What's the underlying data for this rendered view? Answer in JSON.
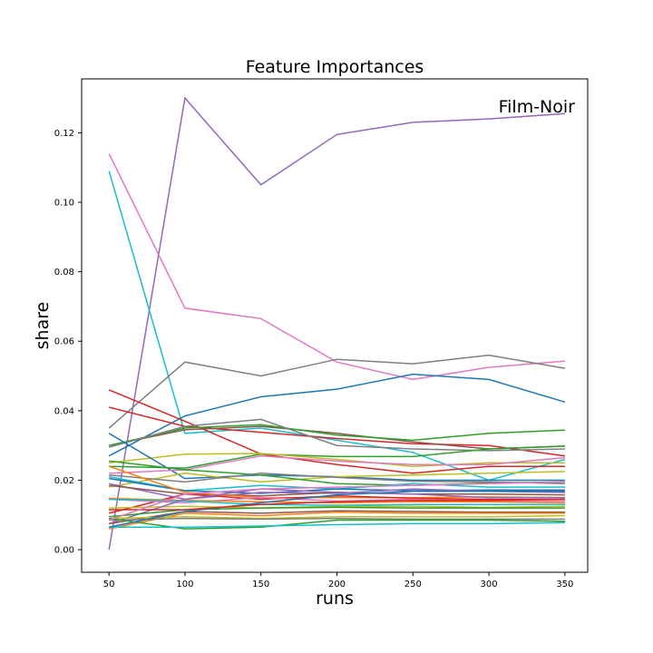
{
  "chart_data": {
    "type": "line",
    "title": "Feature Importances",
    "xlabel": "runs",
    "ylabel": "share",
    "x": [
      50,
      100,
      150,
      200,
      250,
      300,
      350
    ],
    "xticks": [
      50,
      100,
      150,
      200,
      250,
      300,
      350
    ],
    "yticks": [
      0.0,
      0.02,
      0.04,
      0.06,
      0.08,
      0.1,
      0.12
    ],
    "ytick_labels": [
      "0.00",
      "0.02",
      "0.04",
      "0.06",
      "0.08",
      "0.10",
      "0.12"
    ],
    "xlim": [
      32,
      365
    ],
    "ylim": [
      -0.0065,
      0.1355
    ],
    "grid": false,
    "annotation": "Film-Noir",
    "series": [
      {
        "color": "#9467bd",
        "values": [
          0.0,
          0.13,
          0.105,
          0.1195,
          0.123,
          0.124,
          0.1255
        ]
      },
      {
        "color": "#e377c2",
        "values": [
          0.114,
          0.0695,
          0.0665,
          0.054,
          0.049,
          0.0525,
          0.0543
        ]
      },
      {
        "color": "#17becf",
        "values": [
          0.109,
          0.0335,
          0.035,
          0.0315,
          0.028,
          0.02,
          0.026
        ]
      },
      {
        "color": "#7f7f7f",
        "values": [
          0.035,
          0.054,
          0.05,
          0.0548,
          0.0535,
          0.056,
          0.0522
        ]
      },
      {
        "color": "#1f77b4",
        "values": [
          0.027,
          0.0385,
          0.044,
          0.0462,
          0.0505,
          0.049,
          0.0425
        ]
      },
      {
        "color": "#d62728",
        "values": [
          0.046,
          0.037,
          0.0275,
          0.0245,
          0.022,
          0.024,
          0.024
        ]
      },
      {
        "color": "#d62728",
        "values": [
          0.041,
          0.0355,
          0.0338,
          0.032,
          0.0305,
          0.03,
          0.027
        ]
      },
      {
        "color": "#8c564b",
        "values": [
          0.03,
          0.0345,
          0.0355,
          0.0335,
          0.031,
          0.029,
          0.0298
        ]
      },
      {
        "color": "#2ca02c",
        "values": [
          0.03,
          0.035,
          0.036,
          0.033,
          0.0315,
          0.0335,
          0.0344
        ]
      },
      {
        "color": "#7f7f7f",
        "values": [
          0.0295,
          0.0355,
          0.0375,
          0.03,
          0.029,
          0.0285,
          0.029
        ]
      },
      {
        "color": "#2ca02c",
        "values": [
          0.024,
          0.0235,
          0.0275,
          0.0268,
          0.0268,
          0.029,
          0.0298
        ]
      },
      {
        "color": "#bcbd22",
        "values": [
          0.025,
          0.0275,
          0.0277,
          0.026,
          0.024,
          0.025,
          0.025
        ]
      },
      {
        "color": "#1f77b4",
        "values": [
          0.0335,
          0.0205,
          0.0215,
          0.021,
          0.02,
          0.02,
          0.02
        ]
      },
      {
        "color": "#e377c2",
        "values": [
          0.022,
          0.023,
          0.027,
          0.0255,
          0.0245,
          0.0245,
          0.0265
        ]
      },
      {
        "color": "#bcbd22",
        "values": [
          0.018,
          0.022,
          0.0195,
          0.021,
          0.0215,
          0.022,
          0.0225
        ]
      },
      {
        "color": "#2ca02c",
        "values": [
          0.0255,
          0.023,
          0.0215,
          0.019,
          0.0185,
          0.0192,
          0.0195
        ]
      },
      {
        "color": "#7f7f7f",
        "values": [
          0.0215,
          0.0195,
          0.022,
          0.0208,
          0.0197,
          0.0195,
          0.019
        ]
      },
      {
        "color": "#17becf",
        "values": [
          0.021,
          0.017,
          0.0185,
          0.0175,
          0.019,
          0.018,
          0.018
        ]
      },
      {
        "color": "#1f77b4",
        "values": [
          0.0205,
          0.017,
          0.0162,
          0.0175,
          0.017,
          0.0172,
          0.0172
        ]
      },
      {
        "color": "#9467bd",
        "values": [
          0.019,
          0.0145,
          0.0165,
          0.0162,
          0.0175,
          0.0168,
          0.0165
        ]
      },
      {
        "color": "#8c564b",
        "values": [
          0.0185,
          0.016,
          0.0155,
          0.0165,
          0.016,
          0.016,
          0.0158
        ]
      },
      {
        "color": "#ff7f0e",
        "values": [
          0.024,
          0.0165,
          0.015,
          0.015,
          0.015,
          0.0152,
          0.015
        ]
      },
      {
        "color": "#d62728",
        "values": [
          0.0105,
          0.016,
          0.0145,
          0.0155,
          0.0148,
          0.0145,
          0.0145
        ]
      },
      {
        "color": "#e377c2",
        "values": [
          0.0145,
          0.0135,
          0.015,
          0.014,
          0.0145,
          0.014,
          0.014
        ]
      },
      {
        "color": "#ff7f0e",
        "values": [
          0.0148,
          0.0142,
          0.0138,
          0.0135,
          0.0138,
          0.0138,
          0.0135
        ]
      },
      {
        "color": "#17becf",
        "values": [
          0.0145,
          0.014,
          0.013,
          0.0128,
          0.013,
          0.013,
          0.013
        ]
      },
      {
        "color": "#bcbd22",
        "values": [
          0.012,
          0.0125,
          0.012,
          0.0125,
          0.0125,
          0.0122,
          0.0125
        ]
      },
      {
        "color": "#9467bd",
        "values": [
          0.0075,
          0.0145,
          0.0175,
          0.0165,
          0.016,
          0.015,
          0.015
        ]
      },
      {
        "color": "#2ca02c",
        "values": [
          0.0095,
          0.0115,
          0.012,
          0.0122,
          0.012,
          0.012,
          0.012
        ]
      },
      {
        "color": "#8c564b",
        "values": [
          0.0075,
          0.011,
          0.0105,
          0.0112,
          0.011,
          0.0108,
          0.0108
        ]
      },
      {
        "color": "#ff7f0e",
        "values": [
          0.006,
          0.0105,
          0.0098,
          0.0108,
          0.0105,
          0.0105,
          0.0105
        ]
      },
      {
        "color": "#bcbd22",
        "values": [
          0.009,
          0.0095,
          0.009,
          0.0095,
          0.0095,
          0.0095,
          0.0098
        ]
      },
      {
        "color": "#7f7f7f",
        "values": [
          0.0085,
          0.009,
          0.0088,
          0.009,
          0.0088,
          0.0088,
          0.0088
        ]
      },
      {
        "color": "#2ca02c",
        "values": [
          0.009,
          0.006,
          0.0065,
          0.0085,
          0.0085,
          0.0085,
          0.0082
        ]
      },
      {
        "color": "#17becf",
        "values": [
          0.0065,
          0.0065,
          0.0068,
          0.0072,
          0.0075,
          0.0075,
          0.0078
        ]
      },
      {
        "color": "#1f77b4",
        "values": [
          0.0065,
          0.011,
          0.0135,
          0.0158,
          0.0168,
          0.0168,
          0.0168
        ]
      },
      {
        "color": "#d62728",
        "values": [
          0.0115,
          0.0115,
          0.013,
          0.0138,
          0.0142,
          0.0142,
          0.0145
        ]
      },
      {
        "color": "#e377c2",
        "values": [
          0.0085,
          0.016,
          0.0175,
          0.018,
          0.0185,
          0.019,
          0.0195
        ]
      }
    ]
  }
}
